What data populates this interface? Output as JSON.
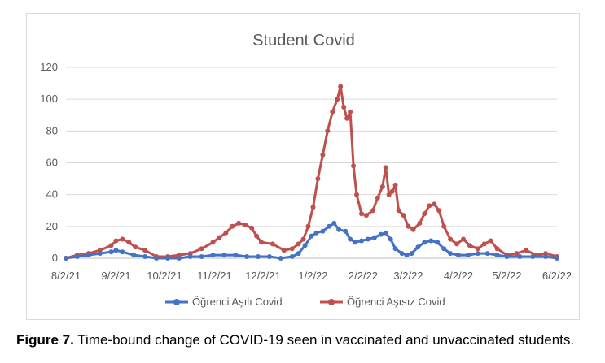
{
  "caption": {
    "label": "Figure 7.",
    "text": " Time-bound change of COVID-19 seen in vaccinated and unvaccinated students."
  },
  "chart_data": {
    "type": "line",
    "title": "Student Covid",
    "xlabel": "",
    "ylabel": "",
    "ylim": [
      0,
      120
    ],
    "yticks": [
      0,
      20,
      40,
      60,
      80,
      100,
      120
    ],
    "xlim": [
      "2021-08-02",
      "2022-06-02"
    ],
    "xticks": [
      "8/2/21",
      "9/2/21",
      "10/2/21",
      "11/2/21",
      "12/2/21",
      "1/2/22",
      "2/2/22",
      "3/2/22",
      "4/2/22",
      "5/2/22",
      "6/2/22"
    ],
    "grid": "horizontal",
    "legend": "bottom",
    "series": [
      {
        "name": "Öğrenci Aşılı Covid",
        "color": "#4472C4",
        "points": [
          [
            "2021-08-02",
            0
          ],
          [
            "2021-08-09",
            1
          ],
          [
            "2021-08-16",
            2
          ],
          [
            "2021-08-23",
            3
          ],
          [
            "2021-08-30",
            4
          ],
          [
            "2021-09-02",
            5
          ],
          [
            "2021-09-06",
            4
          ],
          [
            "2021-09-13",
            2
          ],
          [
            "2021-09-20",
            1
          ],
          [
            "2021-09-27",
            0
          ],
          [
            "2021-10-04",
            0
          ],
          [
            "2021-10-11",
            0
          ],
          [
            "2021-10-18",
            1
          ],
          [
            "2021-10-25",
            1
          ],
          [
            "2021-11-01",
            2
          ],
          [
            "2021-11-08",
            2
          ],
          [
            "2021-11-15",
            2
          ],
          [
            "2021-11-22",
            1
          ],
          [
            "2021-11-29",
            1
          ],
          [
            "2021-12-06",
            1
          ],
          [
            "2021-12-13",
            0
          ],
          [
            "2021-12-20",
            1
          ],
          [
            "2021-12-24",
            3
          ],
          [
            "2021-12-28",
            8
          ],
          [
            "2022-01-01",
            14
          ],
          [
            "2022-01-04",
            16
          ],
          [
            "2022-01-08",
            17
          ],
          [
            "2022-01-12",
            20
          ],
          [
            "2022-01-15",
            22
          ],
          [
            "2022-01-18",
            18
          ],
          [
            "2022-01-22",
            17
          ],
          [
            "2022-01-25",
            12
          ],
          [
            "2022-01-28",
            10
          ],
          [
            "2022-02-01",
            11
          ],
          [
            "2022-02-05",
            12
          ],
          [
            "2022-02-09",
            13
          ],
          [
            "2022-02-13",
            15
          ],
          [
            "2022-02-16",
            16
          ],
          [
            "2022-02-19",
            12
          ],
          [
            "2022-02-22",
            6
          ],
          [
            "2022-02-26",
            3
          ],
          [
            "2022-03-01",
            2
          ],
          [
            "2022-03-04",
            3
          ],
          [
            "2022-03-08",
            7
          ],
          [
            "2022-03-12",
            10
          ],
          [
            "2022-03-16",
            11
          ],
          [
            "2022-03-20",
            10
          ],
          [
            "2022-03-24",
            6
          ],
          [
            "2022-03-28",
            3
          ],
          [
            "2022-04-02",
            2
          ],
          [
            "2022-04-08",
            2
          ],
          [
            "2022-04-14",
            3
          ],
          [
            "2022-04-20",
            3
          ],
          [
            "2022-04-26",
            2
          ],
          [
            "2022-05-02",
            1
          ],
          [
            "2022-05-10",
            1
          ],
          [
            "2022-05-18",
            1
          ],
          [
            "2022-05-26",
            1
          ],
          [
            "2022-06-02",
            0
          ]
        ]
      },
      {
        "name": "Öğrenci Aşısız Covid",
        "color": "#C0504D",
        "points": [
          [
            "2021-08-02",
            0
          ],
          [
            "2021-08-09",
            2
          ],
          [
            "2021-08-16",
            3
          ],
          [
            "2021-08-23",
            5
          ],
          [
            "2021-08-30",
            8
          ],
          [
            "2021-09-02",
            11
          ],
          [
            "2021-09-06",
            12
          ],
          [
            "2021-09-10",
            10
          ],
          [
            "2021-09-14",
            7
          ],
          [
            "2021-09-20",
            5
          ],
          [
            "2021-09-27",
            1
          ],
          [
            "2021-10-04",
            1
          ],
          [
            "2021-10-11",
            2
          ],
          [
            "2021-10-18",
            3
          ],
          [
            "2021-10-25",
            6
          ],
          [
            "2021-11-01",
            10
          ],
          [
            "2021-11-05",
            13
          ],
          [
            "2021-11-09",
            16
          ],
          [
            "2021-11-13",
            20
          ],
          [
            "2021-11-17",
            22
          ],
          [
            "2021-11-21",
            21
          ],
          [
            "2021-11-25",
            19
          ],
          [
            "2021-11-28",
            14
          ],
          [
            "2021-12-01",
            10
          ],
          [
            "2021-12-08",
            9
          ],
          [
            "2021-12-15",
            5
          ],
          [
            "2021-12-20",
            6
          ],
          [
            "2021-12-24",
            9
          ],
          [
            "2021-12-27",
            12
          ],
          [
            "2021-12-30",
            20
          ],
          [
            "2022-01-02",
            32
          ],
          [
            "2022-01-05",
            50
          ],
          [
            "2022-01-08",
            65
          ],
          [
            "2022-01-11",
            80
          ],
          [
            "2022-01-14",
            92
          ],
          [
            "2022-01-17",
            100
          ],
          [
            "2022-01-19",
            108
          ],
          [
            "2022-01-21",
            95
          ],
          [
            "2022-01-23",
            88
          ],
          [
            "2022-01-25",
            92
          ],
          [
            "2022-01-27",
            58
          ],
          [
            "2022-01-29",
            40
          ],
          [
            "2022-02-01",
            28
          ],
          [
            "2022-02-04",
            27
          ],
          [
            "2022-02-08",
            30
          ],
          [
            "2022-02-11",
            38
          ],
          [
            "2022-02-14",
            45
          ],
          [
            "2022-02-16",
            57
          ],
          [
            "2022-02-18",
            40
          ],
          [
            "2022-02-20",
            42
          ],
          [
            "2022-02-22",
            46
          ],
          [
            "2022-02-24",
            30
          ],
          [
            "2022-02-27",
            27
          ],
          [
            "2022-03-02",
            20
          ],
          [
            "2022-03-05",
            18
          ],
          [
            "2022-03-09",
            22
          ],
          [
            "2022-03-12",
            28
          ],
          [
            "2022-03-15",
            33
          ],
          [
            "2022-03-18",
            34
          ],
          [
            "2022-03-21",
            30
          ],
          [
            "2022-03-24",
            20
          ],
          [
            "2022-03-28",
            12
          ],
          [
            "2022-04-01",
            9
          ],
          [
            "2022-04-05",
            12
          ],
          [
            "2022-04-09",
            8
          ],
          [
            "2022-04-14",
            6
          ],
          [
            "2022-04-18",
            9
          ],
          [
            "2022-04-22",
            11
          ],
          [
            "2022-04-26",
            6
          ],
          [
            "2022-05-02",
            2
          ],
          [
            "2022-05-08",
            3
          ],
          [
            "2022-05-14",
            5
          ],
          [
            "2022-05-20",
            2
          ],
          [
            "2022-05-26",
            3
          ],
          [
            "2022-06-02",
            1
          ]
        ]
      }
    ]
  }
}
